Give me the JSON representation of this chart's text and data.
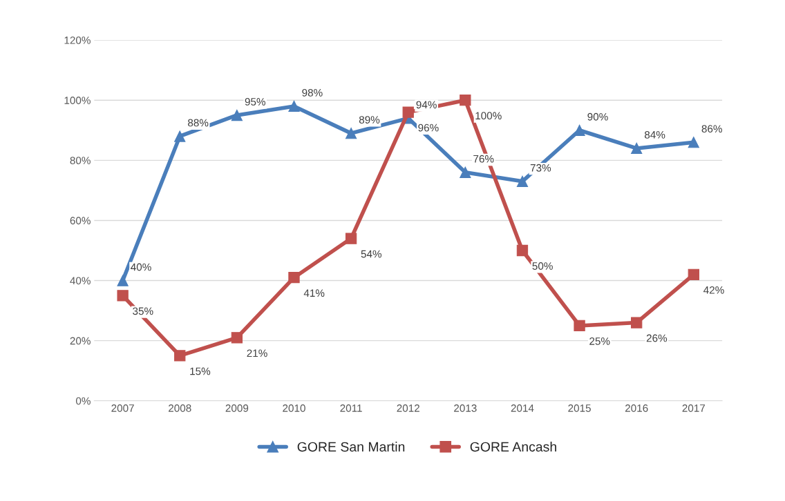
{
  "chart_data": {
    "type": "line",
    "categories": [
      "2007",
      "2008",
      "2009",
      "2010",
      "2011",
      "2012",
      "2013",
      "2014",
      "2015",
      "2016",
      "2017"
    ],
    "series": [
      {
        "name": "GORE San Martin",
        "color": "#4a7ebb",
        "marker": "triangle",
        "values": [
          40,
          88,
          95,
          98,
          89,
          94,
          76,
          73,
          90,
          84,
          86
        ],
        "value_labels": [
          "40%",
          "88%",
          "95%",
          "98%",
          "89%",
          "94%",
          "76%",
          "73%",
          "90%",
          "84%",
          "86%"
        ]
      },
      {
        "name": "GORE Ancash",
        "color": "#c0504d",
        "marker": "square",
        "values": [
          35,
          15,
          21,
          41,
          54,
          96,
          100,
          50,
          25,
          26,
          42
        ],
        "value_labels": [
          "35%",
          "15%",
          "21%",
          "41%",
          "54%",
          "96%",
          "100%",
          "50%",
          "25%",
          "26%",
          "42%"
        ]
      }
    ],
    "ylim": [
      0,
      120
    ],
    "yticks": [
      {
        "value": 0,
        "label": "0%"
      },
      {
        "value": 20,
        "label": "20%"
      },
      {
        "value": 40,
        "label": "40%"
      },
      {
        "value": 60,
        "label": "60%"
      },
      {
        "value": 80,
        "label": "80%"
      },
      {
        "value": 100,
        "label": "100%"
      },
      {
        "value": 120,
        "label": "120%"
      }
    ],
    "grid": "y",
    "legend": "bottom",
    "line_style": "solid"
  }
}
